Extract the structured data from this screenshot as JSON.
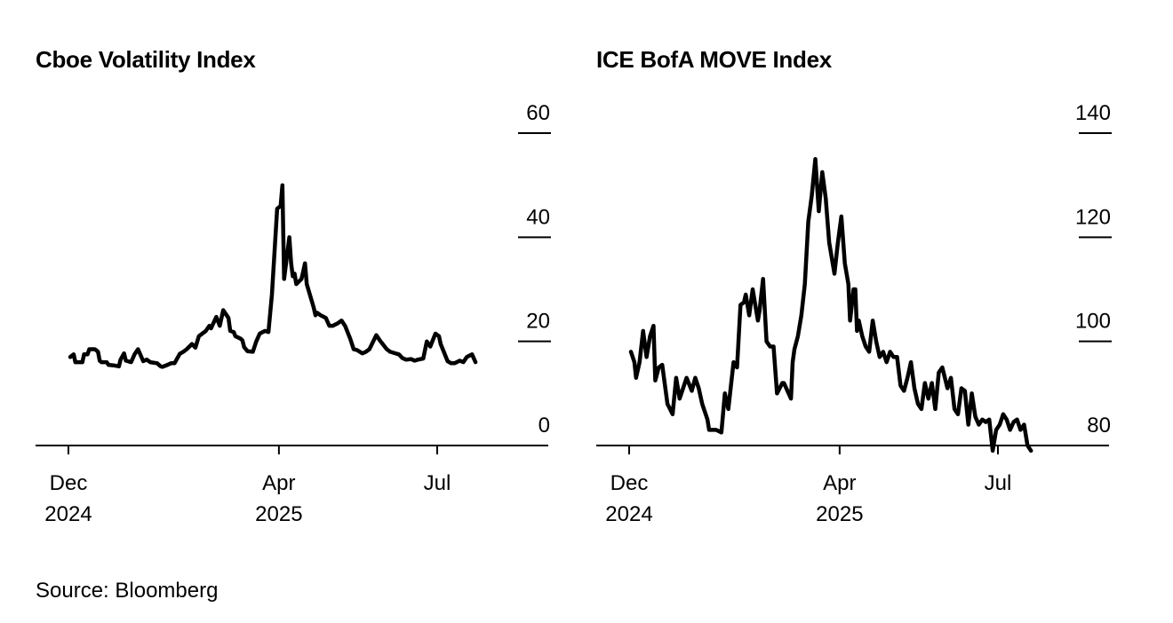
{
  "source": "Source: Bloomberg",
  "chart_data": [
    {
      "type": "line",
      "title": "Cboe Volatility Index",
      "xlabel": "",
      "ylabel": "",
      "x_ticks": [
        {
          "date": "2024-12-01",
          "label": [
            "Dec",
            "2024"
          ]
        },
        {
          "date": "2025-04-01",
          "label": [
            "Apr",
            "2025"
          ]
        },
        {
          "date": "2025-07-01",
          "label": [
            "Jul",
            ""
          ]
        }
      ],
      "y_ticks": [
        0,
        20,
        40,
        60
      ],
      "ylim": [
        0,
        60
      ],
      "grid": false,
      "color": "#000000",
      "series": [
        {
          "x": [
            "2024-12-02",
            "2024-12-04",
            "2024-12-05",
            "2024-12-06",
            "2024-12-09",
            "2024-12-10",
            "2024-12-12",
            "2024-12-13",
            "2024-12-16",
            "2024-12-17",
            "2024-12-18",
            "2024-12-19",
            "2024-12-20",
            "2024-12-23",
            "2024-12-24",
            "2024-12-27",
            "2024-12-30",
            "2024-12-31",
            "2025-01-02",
            "2025-01-03",
            "2025-01-06",
            "2025-01-08",
            "2025-01-10",
            "2025-01-13",
            "2025-01-15",
            "2025-01-17",
            "2025-01-21",
            "2025-01-23",
            "2025-01-24",
            "2025-01-27",
            "2025-01-29",
            "2025-01-31",
            "2025-02-03",
            "2025-02-05",
            "2025-02-07",
            "2025-02-10",
            "2025-02-12",
            "2025-02-14",
            "2025-02-18",
            "2025-02-20",
            "2025-02-21",
            "2025-02-24",
            "2025-02-26",
            "2025-02-28",
            "2025-03-03",
            "2025-03-04",
            "2025-03-06",
            "2025-03-07",
            "2025-03-10",
            "2025-03-11",
            "2025-03-12",
            "2025-03-14",
            "2025-03-17",
            "2025-03-19",
            "2025-03-21",
            "2025-03-24",
            "2025-03-26",
            "2025-03-28",
            "2025-03-31",
            "2025-04-02",
            "2025-04-03",
            "2025-04-04",
            "2025-04-07",
            "2025-04-08",
            "2025-04-09",
            "2025-04-10",
            "2025-04-11",
            "2025-04-14",
            "2025-04-15",
            "2025-04-16",
            "2025-04-17",
            "2025-04-21",
            "2025-04-22",
            "2025-04-23",
            "2025-04-25",
            "2025-04-28",
            "2025-04-30",
            "2025-05-02",
            "2025-05-05",
            "2025-05-07",
            "2025-05-09",
            "2025-05-12",
            "2025-05-14",
            "2025-05-16",
            "2025-05-19",
            "2025-05-21",
            "2025-05-23",
            "2025-05-27",
            "2025-05-29",
            "2025-06-02",
            "2025-06-04",
            "2025-06-06",
            "2025-06-09",
            "2025-06-11",
            "2025-06-13",
            "2025-06-16",
            "2025-06-18",
            "2025-06-20",
            "2025-06-23",
            "2025-06-25",
            "2025-06-27",
            "2025-06-30",
            "2025-07-02",
            "2025-07-03",
            "2025-07-07",
            "2025-07-09",
            "2025-07-11",
            "2025-07-14",
            "2025-07-16",
            "2025-07-18",
            "2025-07-21",
            "2025-07-23"
          ],
          "values": [
            17.0,
            17.5,
            16.0,
            16.0,
            16.0,
            17.5,
            17.5,
            18.5,
            18.5,
            18.3,
            18.0,
            16.3,
            16.0,
            16.0,
            15.5,
            15.4,
            15.2,
            16.5,
            17.7,
            16.3,
            16.0,
            17.5,
            18.5,
            16.2,
            16.5,
            16.0,
            15.8,
            15.2,
            15.1,
            15.5,
            15.8,
            15.8,
            17.6,
            18.0,
            18.5,
            19.5,
            18.8,
            21.0,
            22.0,
            23.0,
            22.5,
            24.7,
            23.0,
            26.0,
            24.5,
            22.0,
            21.8,
            21.0,
            20.5,
            20.2,
            18.9,
            18.1,
            18.0,
            20.0,
            21.5,
            22.0,
            21.8,
            29.0,
            45.5,
            46.0,
            50.0,
            32.0,
            40.0,
            35.0,
            32.5,
            33.0,
            31.0,
            32.0,
            33.5,
            35.0,
            31.0,
            26.5,
            25.0,
            25.5,
            25.0,
            24.5,
            23.0,
            23.0,
            23.5,
            24.0,
            23.0,
            20.5,
            18.5,
            18.3,
            17.7,
            18.0,
            18.5,
            21.2,
            20.2,
            18.5,
            18.0,
            17.8,
            17.5,
            16.8,
            16.5,
            16.6,
            16.3,
            16.5,
            16.7,
            20.0,
            19.0,
            21.5,
            21.0,
            19.5,
            16.2,
            15.8,
            15.8,
            16.3,
            16.0,
            17.0,
            17.5,
            16.0
          ]
        }
      ]
    },
    {
      "type": "line",
      "title": "ICE BofA MOVE Index",
      "xlabel": "",
      "ylabel": "",
      "x_ticks": [
        {
          "date": "2024-12-01",
          "label": [
            "Dec",
            "2024"
          ]
        },
        {
          "date": "2025-04-01",
          "label": [
            "Apr",
            "2025"
          ]
        },
        {
          "date": "2025-07-01",
          "label": [
            "Jul",
            ""
          ]
        }
      ],
      "y_ticks": [
        80,
        100,
        120,
        140
      ],
      "ylim": [
        80,
        140
      ],
      "grid": false,
      "color": "#000000",
      "series": [
        {
          "x": [
            "2024-12-02",
            "2024-12-04",
            "2024-12-05",
            "2024-12-07",
            "2024-12-09",
            "2024-12-11",
            "2024-12-13",
            "2024-12-15",
            "2024-12-16",
            "2024-12-18",
            "2024-12-20",
            "2024-12-23",
            "2024-12-26",
            "2024-12-28",
            "2024-12-30",
            "2025-01-01",
            "2025-01-03",
            "2025-01-06",
            "2025-01-08",
            "2025-01-10",
            "2025-01-12",
            "2025-01-15",
            "2025-01-16",
            "2025-01-18",
            "2025-01-20",
            "2025-01-23",
            "2025-01-25",
            "2025-01-27",
            "2025-01-30",
            "2025-02-01",
            "2025-02-03",
            "2025-02-05",
            "2025-02-06",
            "2025-02-08",
            "2025-02-10",
            "2025-02-13",
            "2025-02-14",
            "2025-02-16",
            "2025-02-18",
            "2025-02-20",
            "2025-02-22",
            "2025-02-24",
            "2025-02-27",
            "2025-02-28",
            "2025-03-02",
            "2025-03-04",
            "2025-03-05",
            "2025-03-06",
            "2025-03-08",
            "2025-03-10",
            "2025-03-12",
            "2025-03-14",
            "2025-03-16",
            "2025-03-18",
            "2025-03-20",
            "2025-03-22",
            "2025-03-24",
            "2025-03-26",
            "2025-03-29",
            "2025-03-31",
            "2025-04-02",
            "2025-04-04",
            "2025-04-06",
            "2025-04-07",
            "2025-04-08",
            "2025-04-09",
            "2025-04-10",
            "2025-04-11",
            "2025-04-12",
            "2025-04-14",
            "2025-04-16",
            "2025-04-18",
            "2025-04-20",
            "2025-04-22",
            "2025-04-24",
            "2025-04-26",
            "2025-04-28",
            "2025-04-30",
            "2025-05-02",
            "2025-05-04",
            "2025-05-06",
            "2025-05-08",
            "2025-05-10",
            "2025-05-12",
            "2025-05-14",
            "2025-05-16",
            "2025-05-18",
            "2025-05-20",
            "2025-05-22",
            "2025-05-24",
            "2025-05-26",
            "2025-05-28",
            "2025-05-30",
            "2025-06-02",
            "2025-06-04",
            "2025-06-06",
            "2025-06-08",
            "2025-06-10",
            "2025-06-12",
            "2025-06-14",
            "2025-06-16",
            "2025-06-18",
            "2025-06-20",
            "2025-06-22",
            "2025-06-24",
            "2025-06-26",
            "2025-06-28",
            "2025-06-30",
            "2025-07-02",
            "2025-07-04",
            "2025-07-06",
            "2025-07-08",
            "2025-07-10",
            "2025-07-12",
            "2025-07-14",
            "2025-07-16",
            "2025-07-18",
            "2025-07-20"
          ],
          "values": [
            98.0,
            96.0,
            93.0,
            96.0,
            102.0,
            97.0,
            101.0,
            103.0,
            92.5,
            95.0,
            95.5,
            88.0,
            86.0,
            93.0,
            89.0,
            91.0,
            93.0,
            90.5,
            93.0,
            91.0,
            88.0,
            85.0,
            83.0,
            83.0,
            83.0,
            82.5,
            90.0,
            87.0,
            96.0,
            95.0,
            107.0,
            107.5,
            109.0,
            105.0,
            110.0,
            104.0,
            106.0,
            112.0,
            100.0,
            99.0,
            99.0,
            90.0,
            92.0,
            92.0,
            90.5,
            89.0,
            96.0,
            98.5,
            101.0,
            105.0,
            111.0,
            123.0,
            128.0,
            135.0,
            125.0,
            132.5,
            127.5,
            119.0,
            113.0,
            119.0,
            124.0,
            115.0,
            111.0,
            104.0,
            107.0,
            110.0,
            110.0,
            102.0,
            104.0,
            101.0,
            99.0,
            98.0,
            104.0,
            100.0,
            97.0,
            98.0,
            96.0,
            98.0,
            97.0,
            97.0,
            91.5,
            90.5,
            93.0,
            96.0,
            91.0,
            88.0,
            87.0,
            92.0,
            89.0,
            92.0,
            87.0,
            94.0,
            95.0,
            91.0,
            93.0,
            87.0,
            86.0,
            91.0,
            90.5,
            84.0,
            90.0,
            85.5,
            84.0,
            85.0,
            84.5,
            85.0,
            79.0,
            83.0,
            84.0,
            86.0,
            85.0,
            83.0,
            84.5,
            85.0,
            83.0,
            84.0,
            80.0,
            79.0
          ]
        }
      ]
    }
  ]
}
